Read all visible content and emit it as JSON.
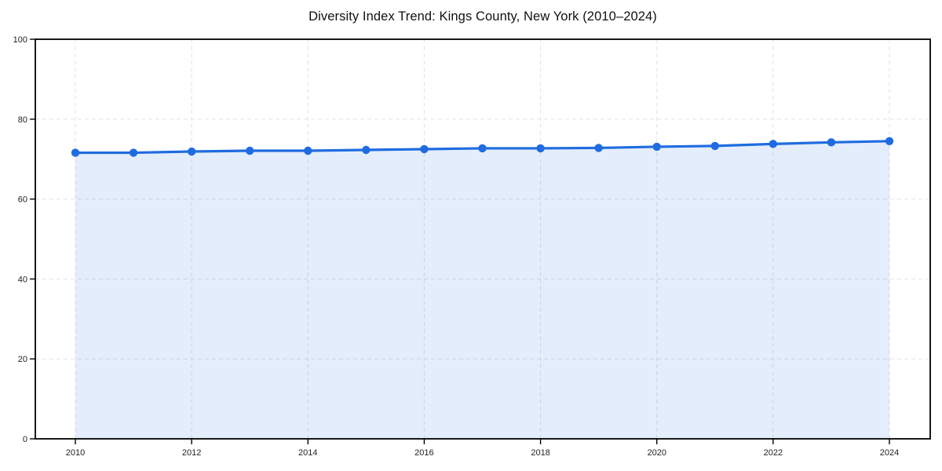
{
  "chart_data": {
    "type": "line",
    "title": "Diversity Index Trend: Kings County, New York (2010–2024)",
    "x": [
      2010,
      2011,
      2012,
      2013,
      2014,
      2015,
      2016,
      2017,
      2018,
      2019,
      2020,
      2021,
      2022,
      2023,
      2024
    ],
    "series": [
      {
        "name": "Diversity Index",
        "values": [
          71.6,
          71.6,
          71.9,
          72.1,
          72.1,
          72.3,
          72.5,
          72.7,
          72.7,
          72.8,
          73.1,
          73.3,
          73.8,
          74.2,
          74.5
        ]
      }
    ],
    "xlabel": "",
    "ylabel": "",
    "ylim": [
      0,
      100
    ],
    "yticks": [
      0,
      20,
      40,
      60,
      80,
      100
    ],
    "xticks": [
      2010,
      2012,
      2014,
      2016,
      2018,
      2020,
      2022,
      2024
    ],
    "grid": "dashed",
    "legend_position": "none",
    "colors": {
      "line": "#1f6ce0",
      "marker": "#1f6ce0",
      "area_fill": "rgba(31,108,224,0.12)",
      "grid": "#e2e2e2",
      "axis": "#000000",
      "tick_label": "#222222",
      "title": "#111111",
      "background": "#ffffff"
    }
  }
}
